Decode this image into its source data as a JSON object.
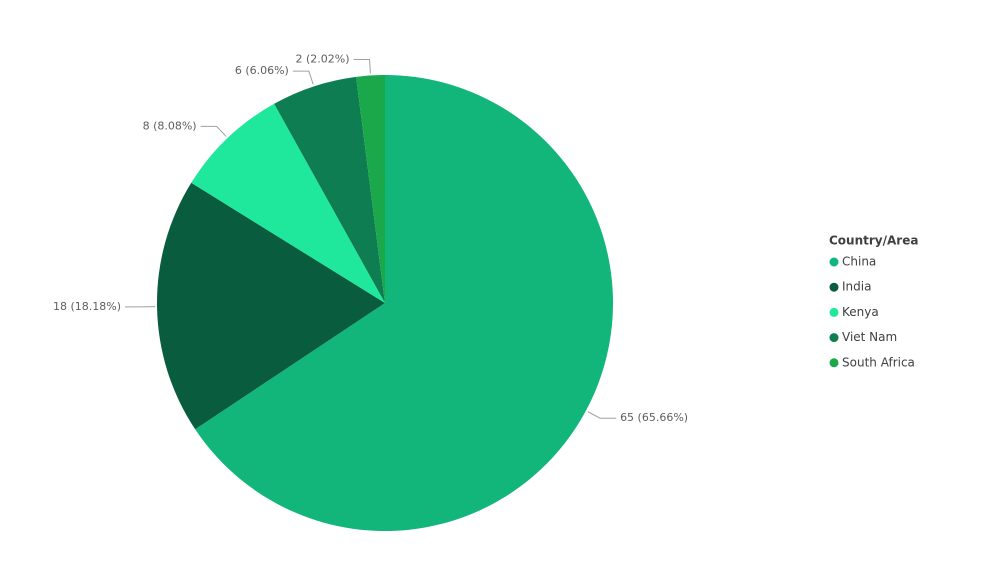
{
  "chart_data": {
    "type": "pie",
    "legend_title": "Country/Area",
    "legend_position": "right",
    "categories": [
      "China",
      "India",
      "Kenya",
      "Viet Nam",
      "South Africa"
    ],
    "values": [
      65,
      18,
      8,
      6,
      2
    ],
    "value_labels": [
      "65 (65.66%)",
      "18 (18.18%)",
      "8 (8.08%)",
      "6 (6.06%)",
      "2 (2.02%)"
    ],
    "colors": [
      "#12b57a",
      "#0a5c3e",
      "#1fe89c",
      "#0f7d52",
      "#1aa84a"
    ]
  }
}
